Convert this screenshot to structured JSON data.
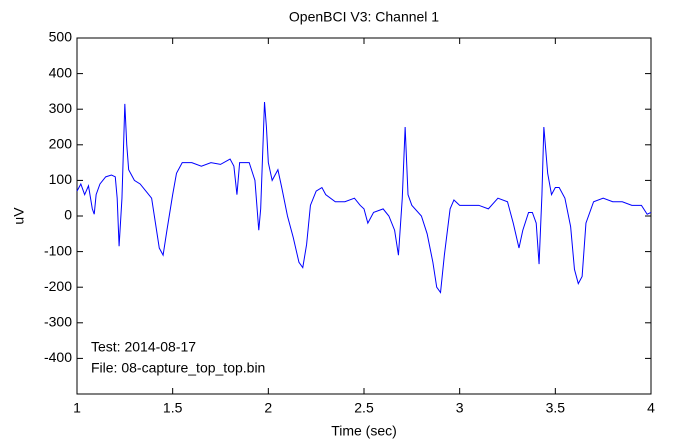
{
  "chart_data": {
    "type": "line",
    "title": "OpenBCI V3: Channel 1",
    "xlabel": "Time (sec)",
    "ylabel": "uV",
    "annotations": [
      "Test: 2014-08-17",
      "File: 08-capture_top_top.bin"
    ],
    "x": [
      1.0,
      1.02,
      1.04,
      1.06,
      1.08,
      1.09,
      1.1,
      1.12,
      1.15,
      1.18,
      1.2,
      1.21,
      1.22,
      1.235,
      1.25,
      1.26,
      1.27,
      1.3,
      1.33,
      1.36,
      1.39,
      1.41,
      1.43,
      1.45,
      1.47,
      1.5,
      1.52,
      1.55,
      1.6,
      1.65,
      1.7,
      1.75,
      1.8,
      1.82,
      1.836,
      1.85,
      1.9,
      1.93,
      1.95,
      1.96,
      1.98,
      1.99,
      2.0,
      2.02,
      2.05,
      2.07,
      2.1,
      2.13,
      2.16,
      2.18,
      2.2,
      2.22,
      2.25,
      2.28,
      2.3,
      2.35,
      2.4,
      2.45,
      2.48,
      2.5,
      2.52,
      2.55,
      2.6,
      2.63,
      2.66,
      2.68,
      2.7,
      2.715,
      2.73,
      2.75,
      2.8,
      2.83,
      2.86,
      2.88,
      2.9,
      2.92,
      2.95,
      2.97,
      3.0,
      3.05,
      3.1,
      3.15,
      3.2,
      3.25,
      3.28,
      3.31,
      3.33,
      3.36,
      3.38,
      3.4,
      3.415,
      3.43,
      3.44,
      3.46,
      3.48,
      3.5,
      3.52,
      3.55,
      3.58,
      3.6,
      3.62,
      3.64,
      3.66,
      3.7,
      3.75,
      3.8,
      3.85,
      3.9,
      3.95,
      3.98,
      4.0
    ],
    "series": [
      {
        "name": "Channel 1",
        "color": "#0000ff",
        "values": [
          70,
          90,
          60,
          85,
          20,
          5,
          60,
          90,
          110,
          115,
          110,
          50,
          -85,
          50,
          315,
          200,
          130,
          100,
          90,
          70,
          50,
          -20,
          -90,
          -110,
          -40,
          60,
          120,
          150,
          150,
          140,
          150,
          145,
          160,
          140,
          60,
          150,
          150,
          100,
          -40,
          20,
          320,
          250,
          150,
          100,
          130,
          80,
          0,
          -60,
          -130,
          -145,
          -80,
          30,
          70,
          80,
          60,
          40,
          40,
          50,
          30,
          20,
          -20,
          10,
          20,
          0,
          -40,
          -110,
          50,
          250,
          60,
          30,
          0,
          -50,
          -130,
          -200,
          -215,
          -110,
          20,
          45,
          30,
          30,
          30,
          20,
          50,
          40,
          -20,
          -90,
          -40,
          10,
          10,
          -20,
          -135,
          60,
          250,
          120,
          60,
          80,
          80,
          50,
          -30,
          -150,
          -190,
          -170,
          -20,
          40,
          50,
          40,
          40,
          30,
          30,
          5,
          10
        ]
      }
    ],
    "xlim": [
      1,
      4
    ],
    "xticks": [
      1,
      1.5,
      2,
      2.5,
      3,
      3.5,
      4
    ],
    "ylim": [
      -500,
      500
    ],
    "yticks": [
      -400,
      -300,
      -200,
      -100,
      0,
      100,
      200,
      300,
      400,
      500
    ]
  }
}
